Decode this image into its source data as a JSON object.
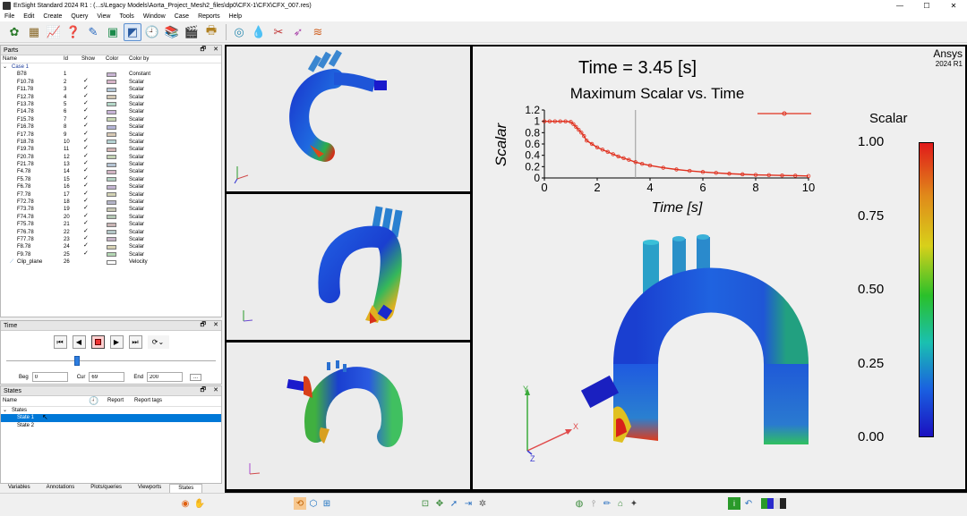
{
  "window": {
    "title": "EnSight Standard 2024 R1 : (...s\\Legacy Models\\Aorta_Project_Mesh2_files\\dp0\\CFX-1\\CFX\\CFX_007.res)",
    "minimize": "—",
    "maximize": "☐",
    "close": "✕"
  },
  "menu": [
    "File",
    "Edit",
    "Create",
    "Query",
    "View",
    "Tools",
    "Window",
    "Case",
    "Reports",
    "Help"
  ],
  "parts_panel": {
    "title": "Parts",
    "columns": {
      "name": "Name",
      "id": "Id",
      "show": "Show",
      "color": "Color",
      "color_by": "Color by"
    },
    "case_label": "Case 1",
    "parts": [
      {
        "name": "B78",
        "id": "1",
        "show": "",
        "color": "#c8b4d2",
        "color_by": "Constant"
      },
      {
        "name": "F10.78",
        "id": "2",
        "show": "✓",
        "color": "#d7b4c8",
        "color_by": "Scalar"
      },
      {
        "name": "F11.78",
        "id": "3",
        "show": "✓",
        "color": "#b4c8d7",
        "color_by": "Scalar"
      },
      {
        "name": "F12.78",
        "id": "4",
        "show": "✓",
        "color": "#d2c8b4",
        "color_by": "Scalar"
      },
      {
        "name": "F13.78",
        "id": "5",
        "show": "✓",
        "color": "#b4d7c8",
        "color_by": "Scalar"
      },
      {
        "name": "F14.78",
        "id": "6",
        "show": "✓",
        "color": "#c8b4d7",
        "color_by": "Scalar"
      },
      {
        "name": "F15.78",
        "id": "7",
        "show": "✓",
        "color": "#c8d7b4",
        "color_by": "Scalar"
      },
      {
        "name": "F16.78",
        "id": "8",
        "show": "✓",
        "color": "#b4b4d7",
        "color_by": "Scalar"
      },
      {
        "name": "F17.78",
        "id": "9",
        "show": "✓",
        "color": "#d7c8b4",
        "color_by": "Scalar"
      },
      {
        "name": "F18.78",
        "id": "10",
        "show": "✓",
        "color": "#b4d2d2",
        "color_by": "Scalar"
      },
      {
        "name": "F19.78",
        "id": "11",
        "show": "✓",
        "color": "#d2b4b4",
        "color_by": "Scalar"
      },
      {
        "name": "F20.78",
        "id": "12",
        "show": "✓",
        "color": "#c3d2b4",
        "color_by": "Scalar"
      },
      {
        "name": "F21.78",
        "id": "13",
        "show": "✓",
        "color": "#b4c3d2",
        "color_by": "Scalar"
      },
      {
        "name": "F4.78",
        "id": "14",
        "show": "✓",
        "color": "#d2b4c3",
        "color_by": "Scalar"
      },
      {
        "name": "F5.78",
        "id": "15",
        "show": "✓",
        "color": "#b4d2c3",
        "color_by": "Scalar"
      },
      {
        "name": "F6.78",
        "id": "16",
        "show": "✓",
        "color": "#c3b4d2",
        "color_by": "Scalar"
      },
      {
        "name": "F7.78",
        "id": "17",
        "show": "✓",
        "color": "#d2d2b4",
        "color_by": "Scalar"
      },
      {
        "name": "F72.78",
        "id": "18",
        "show": "✓",
        "color": "#b4b4c8",
        "color_by": "Scalar"
      },
      {
        "name": "F73.78",
        "id": "19",
        "show": "✓",
        "color": "#c8c8b4",
        "color_by": "Scalar"
      },
      {
        "name": "F74.78",
        "id": "20",
        "show": "✓",
        "color": "#b4c8b4",
        "color_by": "Scalar"
      },
      {
        "name": "F75.78",
        "id": "21",
        "show": "✓",
        "color": "#c8b4b4",
        "color_by": "Scalar"
      },
      {
        "name": "F76.78",
        "id": "22",
        "show": "✓",
        "color": "#b4c8c8",
        "color_by": "Scalar"
      },
      {
        "name": "F77.78",
        "id": "23",
        "show": "✓",
        "color": "#c8b4c8",
        "color_by": "Scalar"
      },
      {
        "name": "F8.78",
        "id": "24",
        "show": "✓",
        "color": "#d7d2b4",
        "color_by": "Scalar"
      },
      {
        "name": "F9.78",
        "id": "25",
        "show": "✓",
        "color": "#b4d7b4",
        "color_by": "Scalar"
      },
      {
        "name": "Clip_plane",
        "id": "26",
        "show": "",
        "color": "#ffffff",
        "color_by": "Velocity"
      }
    ]
  },
  "time_panel": {
    "title": "Time",
    "beg_label": "Beg",
    "beg_value": "0",
    "cur_label": "Cur",
    "cur_value": "69",
    "end_label": "End",
    "end_value": "200",
    "more_label": "..."
  },
  "states_panel": {
    "title": "States",
    "columns": {
      "name": "Name",
      "report": "Report",
      "report_tags": "Report tags"
    },
    "group": "States",
    "items": [
      "State 1",
      "State 2"
    ]
  },
  "tabs": [
    "Variables",
    "Annotations",
    "Plots/queries",
    "Viewports",
    "States"
  ],
  "main_view": {
    "brand": "Ansys",
    "version": "2024 R1",
    "time_label": "Time = 3.45 [s]",
    "legend_title": "Scalar",
    "legend_ticks": [
      "1.00",
      "0.75",
      "0.50",
      "0.25",
      "0.00"
    ]
  },
  "chart_data": {
    "type": "line",
    "title": "Maximum Scalar vs. Time",
    "xlabel": "Time [s]",
    "ylabel": "Scalar",
    "xlim": [
      0,
      10
    ],
    "ylim": [
      0,
      1.2
    ],
    "xticks": [
      "0",
      "2",
      "4",
      "6",
      "8",
      "10"
    ],
    "yticks": [
      "0",
      "0.2",
      "0.4",
      "0.6",
      "0.8",
      "1",
      "1.2"
    ],
    "current_time": 3.45,
    "color": "#e0301e",
    "x": [
      0,
      0.2,
      0.4,
      0.6,
      0.8,
      1.0,
      1.1,
      1.2,
      1.3,
      1.4,
      1.5,
      1.6,
      1.8,
      2.0,
      2.2,
      2.4,
      2.6,
      2.8,
      3.0,
      3.2,
      3.45,
      3.7,
      4.0,
      4.5,
      5.0,
      5.5,
      6.0,
      6.5,
      7.0,
      7.5,
      8.0,
      8.5,
      9.0,
      9.5,
      10.0
    ],
    "y": [
      1.0,
      1.0,
      1.0,
      1.0,
      1.0,
      0.99,
      0.95,
      0.9,
      0.85,
      0.8,
      0.74,
      0.66,
      0.6,
      0.54,
      0.5,
      0.46,
      0.42,
      0.38,
      0.35,
      0.32,
      0.28,
      0.25,
      0.22,
      0.18,
      0.15,
      0.125,
      0.105,
      0.09,
      0.075,
      0.065,
      0.055,
      0.05,
      0.045,
      0.04,
      0.035
    ]
  },
  "axes_labels": {
    "x": "X",
    "y": "Y",
    "z": "Z"
  }
}
